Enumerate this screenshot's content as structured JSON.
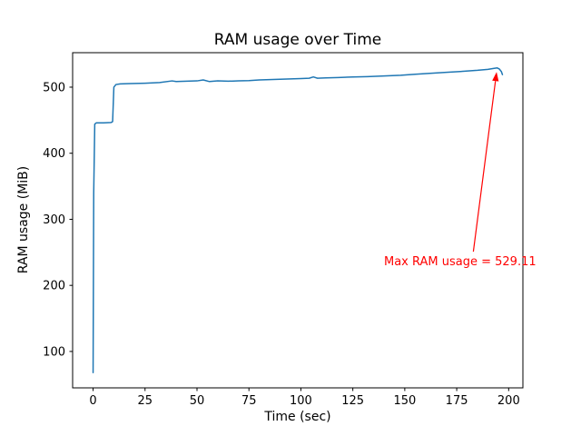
{
  "chart_data": {
    "type": "line",
    "title": "RAM usage over Time",
    "xlabel": "Time (sec)",
    "ylabel": "RAM usage (MiB)",
    "xlim": [
      -9.85,
      206.85
    ],
    "ylim": [
      44.9,
      552.2
    ],
    "xticks": [
      0,
      25,
      50,
      75,
      100,
      125,
      150,
      175,
      200
    ],
    "yticks": [
      100,
      200,
      300,
      400,
      500
    ],
    "grid": false,
    "legend": "none",
    "line_color": "#1f77b4",
    "series": [
      {
        "name": "RAM usage",
        "x": [
          0,
          0.3,
          0.8,
          1.5,
          5,
          8.5,
          9,
          9.4,
          10,
          11,
          13,
          18,
          25,
          32,
          38,
          40,
          45,
          50,
          53,
          56,
          60,
          65,
          70,
          75,
          80,
          85,
          90,
          95,
          100,
          104,
          106,
          108,
          112,
          118,
          125,
          132,
          140,
          148,
          155,
          162,
          170,
          178,
          185,
          190,
          193,
          194.5,
          195.5,
          196.5,
          197
        ],
        "y": [
          68,
          340,
          444,
          446,
          446,
          446.5,
          447,
          448,
          500,
          504,
          505,
          505.5,
          506,
          507,
          509.5,
          508.5,
          509,
          509.5,
          511,
          508.5,
          509.5,
          509,
          509.5,
          510,
          511,
          511.5,
          512,
          512.5,
          513,
          513.5,
          515.5,
          513.5,
          514,
          514.5,
          515.5,
          516,
          517,
          518,
          519.5,
          521,
          522.5,
          524,
          525.5,
          527,
          528.5,
          529.11,
          527.5,
          523.5,
          519
        ]
      }
    ],
    "max_value": 529.11,
    "annotation": {
      "text": "Max RAM usage = 529.11",
      "color": "#ff0000",
      "text_xy": [
        140,
        234
      ],
      "arrow_from": [
        183,
        251
      ],
      "arrow_to": [
        194.2,
        523
      ]
    }
  }
}
